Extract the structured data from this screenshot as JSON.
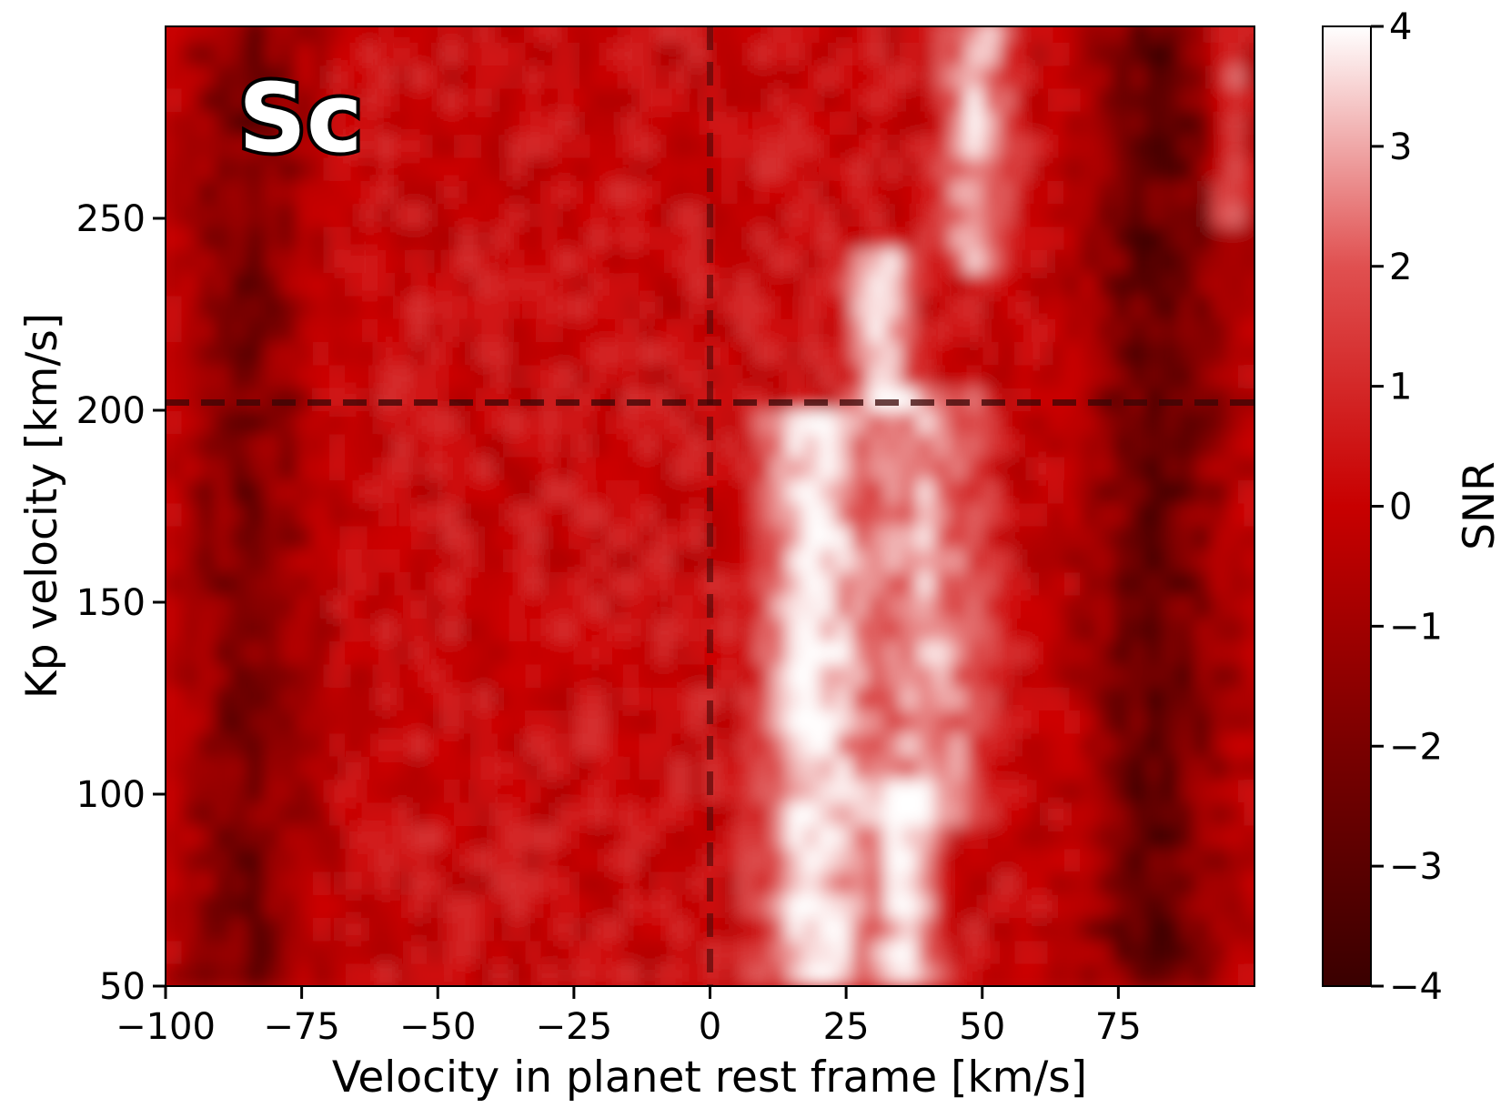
{
  "chart_data": {
    "type": "heatmap",
    "annotation": "Sc",
    "xlabel": "Velocity in planet rest frame [km/s]",
    "ylabel": "Kp velocity [km/s]",
    "xlim": [
      -100,
      100
    ],
    "ylim": [
      50,
      300
    ],
    "x_ticks": [
      -100,
      -75,
      -50,
      -25,
      0,
      25,
      50,
      75
    ],
    "x_tick_labels": [
      "−100",
      "−75",
      "−50",
      "−25",
      "0",
      "25",
      "50",
      "75"
    ],
    "y_ticks": [
      50,
      100,
      150,
      200,
      250
    ],
    "y_tick_labels": [
      "50",
      "100",
      "150",
      "200",
      "250"
    ],
    "reference_lines": {
      "vertical_x": 0,
      "horizontal_y": 202
    },
    "colorbar": {
      "label": "SNR",
      "range": [
        -4,
        4
      ],
      "ticks": [
        -4,
        -3,
        -2,
        -1,
        0,
        1,
        2,
        3,
        4
      ],
      "tick_labels": [
        "−4",
        "−3",
        "−2",
        "−1",
        "0",
        "1",
        "2",
        "3",
        "4"
      ],
      "colormap": [
        "#3a0000",
        "#a00000",
        "#cc0000",
        "#e06060",
        "#ffffff"
      ]
    },
    "snr_features": [
      {
        "kind": "streak",
        "x_center": 19,
        "y_from": 50,
        "y_to": 195,
        "x_width": 9,
        "snr": 4.0
      },
      {
        "kind": "streak",
        "x_center": 36,
        "y_from": 50,
        "y_to": 100,
        "x_width": 6,
        "snr": 4.0
      },
      {
        "kind": "streak",
        "x_center": 40,
        "y_from": 100,
        "y_to": 200,
        "x_width": 10,
        "snr": 2.8
      },
      {
        "kind": "streak",
        "x_center": 31,
        "y_from": 205,
        "y_to": 235,
        "x_width": 5,
        "snr": 3.8
      },
      {
        "kind": "streak",
        "x_center": 49,
        "y_from": 240,
        "y_to": 300,
        "x_width": 6,
        "snr": 3.2
      },
      {
        "kind": "streak",
        "x_center": 95,
        "y_from": 255,
        "y_to": 300,
        "x_width": 3,
        "snr": 3.0
      },
      {
        "kind": "trough",
        "x_center": -85,
        "y_from": 50,
        "y_to": 300,
        "x_width": 12,
        "snr": -2.5
      },
      {
        "kind": "trough",
        "x_center": 82,
        "y_from": 50,
        "y_to": 300,
        "x_width": 14,
        "snr": -3.0
      }
    ]
  }
}
